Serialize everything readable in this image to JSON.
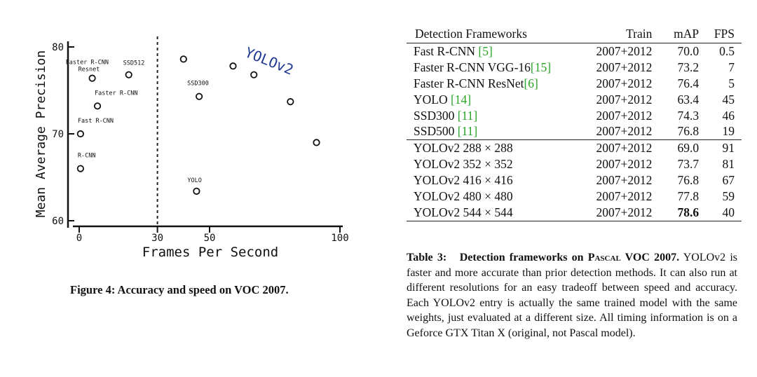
{
  "figure": {
    "caption_label": "Figure 4:",
    "caption_text": "Accuracy and speed on VOC 2007.",
    "chart_data": {
      "type": "scatter",
      "xlabel": "Frames Per Second",
      "ylabel": "Mean Average Precision",
      "xlim": [
        0,
        100
      ],
      "ylim": [
        60,
        80
      ],
      "x_ticks": [
        0,
        30,
        50,
        100
      ],
      "y_ticks": [
        60,
        70,
        80
      ],
      "vline_x": 30,
      "points": [
        {
          "label": "R-CNN",
          "x": 0.5,
          "y": 66.0
        },
        {
          "label": "Fast R-CNN",
          "x": 0.5,
          "y": 70.0
        },
        {
          "label": "Faster R-CNN",
          "x": 7,
          "y": 73.2
        },
        {
          "label": "Faster R-CNN Resnet",
          "x": 5,
          "y": 76.4
        },
        {
          "label": "SSD512",
          "x": 19,
          "y": 76.8
        },
        {
          "label": "SSD300",
          "x": 46,
          "y": 74.3
        },
        {
          "label": "YOLO",
          "x": 45,
          "y": 63.4
        },
        {
          "label": "",
          "x": 40,
          "y": 78.6
        },
        {
          "label": "",
          "x": 59,
          "y": 77.8
        },
        {
          "label": "",
          "x": 67,
          "y": 76.8
        },
        {
          "label": "",
          "x": 81,
          "y": 73.7
        },
        {
          "label": "",
          "x": 91,
          "y": 69.0
        }
      ],
      "annotation": "YOLOv2"
    }
  },
  "table": {
    "headers": [
      "Detection Frameworks",
      "Train",
      "mAP",
      "FPS"
    ],
    "rows": [
      {
        "name": "Fast R-CNN ",
        "cite": "[5]",
        "train": "2007+2012",
        "map": "70.0",
        "fps": "0.5"
      },
      {
        "name": "Faster R-CNN VGG-16",
        "cite": "[15]",
        "train": "2007+2012",
        "map": "73.2",
        "fps": "7"
      },
      {
        "name": "Faster R-CNN ResNet",
        "cite": "[6]",
        "train": "2007+2012",
        "map": "76.4",
        "fps": "5"
      },
      {
        "name": "YOLO ",
        "cite": "[14]",
        "train": "2007+2012",
        "map": "63.4",
        "fps": "45"
      },
      {
        "name": "SSD300 ",
        "cite": "[11]",
        "train": "2007+2012",
        "map": "74.3",
        "fps": "46"
      },
      {
        "name": "SSD500 ",
        "cite": "[11]",
        "train": "2007+2012",
        "map": "76.8",
        "fps": "19"
      },
      {
        "name": "YOLOv2 288 × 288",
        "cite": "",
        "train": "2007+2012",
        "map": "69.0",
        "fps": "91"
      },
      {
        "name": "YOLOv2 352 × 352",
        "cite": "",
        "train": "2007+2012",
        "map": "73.7",
        "fps": "81"
      },
      {
        "name": "YOLOv2 416 × 416",
        "cite": "",
        "train": "2007+2012",
        "map": "76.8",
        "fps": "67"
      },
      {
        "name": "YOLOv2 480 × 480",
        "cite": "",
        "train": "2007+2012",
        "map": "77.8",
        "fps": "59"
      },
      {
        "name": "YOLOv2 544 × 544",
        "cite": "",
        "train": "2007+2012",
        "map": "78.6",
        "fps": "40"
      }
    ],
    "caption_label": "Table 3:",
    "caption_title_a": "Detection frameworks on ",
    "caption_title_b": "Pascal",
    "caption_title_c": " VOC 2007.",
    "caption_body": "YOLOv2 is faster and more accurate than prior detection methods. It can also run at different resolutions for an easy tradeoff between speed and accuracy. Each YOLOv2 entry is actually the same trained model with the same weights, just evaluated at a different size. All timing information is on a Geforce GTX Titan X (original, not Pascal model)."
  }
}
